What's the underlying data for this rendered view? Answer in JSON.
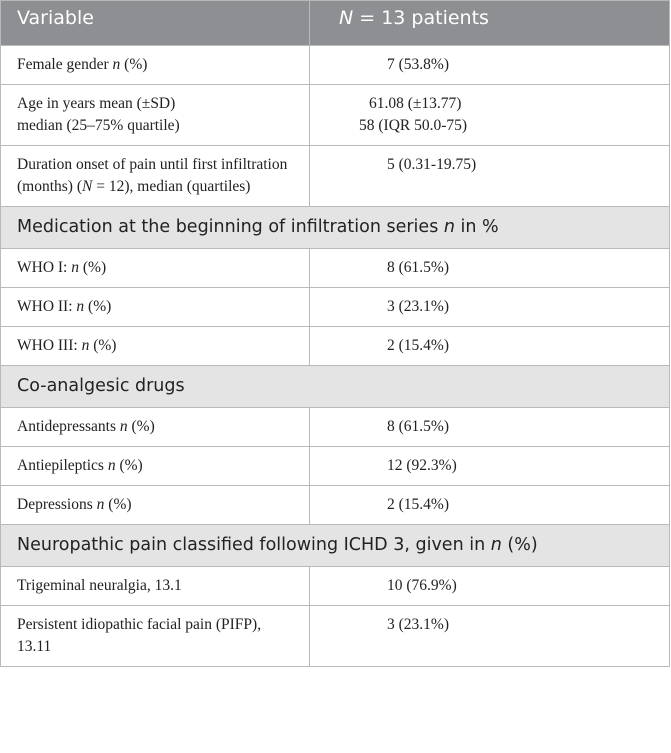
{
  "header": {
    "col1": "Variable",
    "col2_prefix": "N",
    "col2_suffix": " = 13 patients"
  },
  "rows": {
    "female": {
      "label_a": "Female gender ",
      "label_n": "n",
      "label_b": " (%)",
      "value": "7 (53.8%)"
    },
    "age": {
      "label_line1": "Age in years mean (±SD)",
      "label_line2": "median (25–75% quartile)",
      "value_line1": "61.08 (±13.77)",
      "value_line2": "58 (IQR 50.0-75)"
    },
    "duration": {
      "label_a": "Duration onset of pain until first infiltration (months) (",
      "label_n": "N",
      "label_b": " = 12), median (quartiles)",
      "value": "5 (0.31-19.75)"
    }
  },
  "sections": {
    "medication": {
      "text_a": "Medication at the beginning of infiltration series ",
      "text_n": "n",
      "text_b": " in %"
    },
    "coanalgesic": {
      "text": "Co-analgesic drugs"
    },
    "neuropathic": {
      "text_a": "Neuropathic pain classified following ICHD 3, given in ",
      "text_n": "n",
      "text_b": " (%)"
    }
  },
  "medication_rows": [
    {
      "label_a": "WHO I: ",
      "label_n": "n",
      "label_b": " (%)",
      "value": "8 (61.5%)"
    },
    {
      "label_a": "WHO II: ",
      "label_n": "n",
      "label_b": " (%)",
      "value": "3 (23.1%)"
    },
    {
      "label_a": "WHO III: ",
      "label_n": "n",
      "label_b": " (%)",
      "value": "2 (15.4%)"
    }
  ],
  "coanalgesic_rows": [
    {
      "label_a": "Antidepressants ",
      "label_n": "n",
      "label_b": " (%)",
      "value": "8 (61.5%)"
    },
    {
      "label_a": "Antiepileptics ",
      "label_n": "n",
      "label_b": " (%)",
      "value": "12 (92.3%)"
    },
    {
      "label_a": "Depressions ",
      "label_n": "n",
      "label_b": " (%)",
      "value": "2 (15.4%)"
    }
  ],
  "neuropathic_rows": [
    {
      "label": "Trigeminal neuralgia, 13.1",
      "value": "10 (76.9%)"
    },
    {
      "label": "Persistent idiopathic facial pain (PIFP), 13.11",
      "value": "3 (23.1%)"
    }
  ]
}
